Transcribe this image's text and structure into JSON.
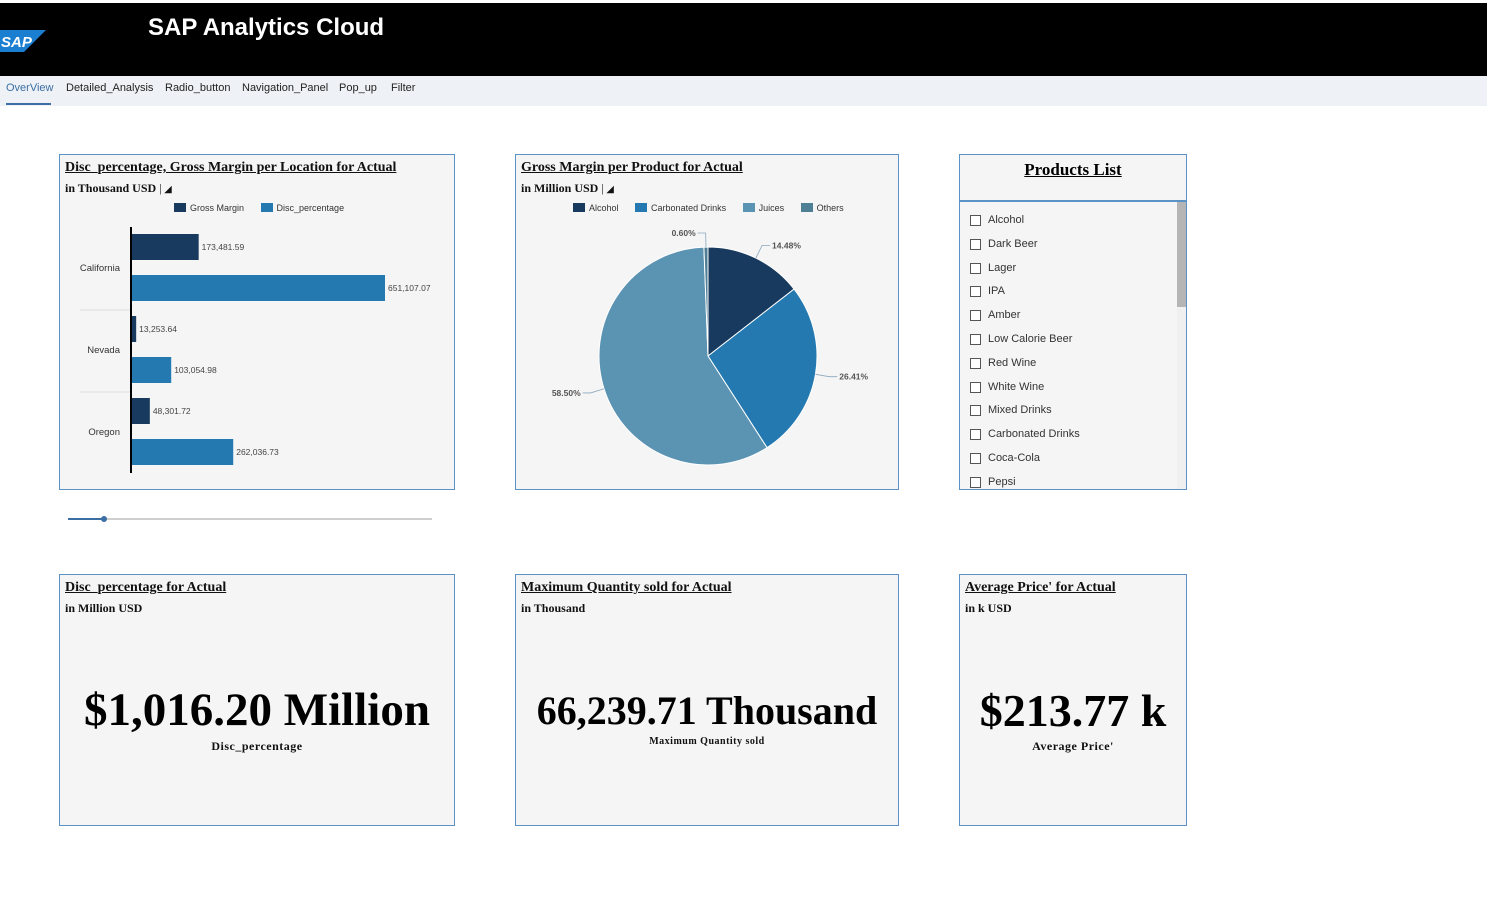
{
  "app": {
    "title": "SAP Analytics Cloud",
    "logo_text": "SAP"
  },
  "tabs": [
    {
      "label": "OverView",
      "active": true
    },
    {
      "label": "Detailed_Analysis"
    },
    {
      "label": "Radio_button"
    },
    {
      "label": "Navigation_Panel"
    },
    {
      "label": "Pop_up"
    },
    {
      "label": "Filter"
    }
  ],
  "colors": {
    "dark": "#173a5e",
    "mid": "#2479b0",
    "light": "#5b93b2",
    "gray": "#4f7f95",
    "accent": "#3b6ea5"
  },
  "bar_card": {
    "title": "Disc_percentage, Gross Margin per Location for Actual",
    "subtitle": "in Thousand USD",
    "legend": [
      "Gross Margin",
      "Disc_percentage"
    ],
    "chart_data": {
      "type": "bar",
      "orientation": "horizontal",
      "categories": [
        "California",
        "Nevada",
        "Oregon"
      ],
      "series": [
        {
          "name": "Gross Margin",
          "values": [
            173481.59,
            13253.64,
            48301.72
          ],
          "labels": [
            "173,481.59",
            "13,253.64",
            "48,301.72"
          ]
        },
        {
          "name": "Disc_percentage",
          "values": [
            651107.07,
            103054.98,
            262036.73
          ],
          "labels": [
            "651,107.07",
            "103,054.98",
            "262,036.73"
          ]
        }
      ]
    }
  },
  "pie_card": {
    "title": "Gross Margin per Product for Actual",
    "subtitle": "in Million USD",
    "legend": [
      "Alcohol",
      "Carbonated Drinks",
      "Juices",
      "Others"
    ],
    "chart_data": {
      "type": "pie",
      "categories": [
        "Alcohol",
        "Carbonated Drinks",
        "Juices",
        "Others"
      ],
      "values": [
        14.48,
        26.41,
        58.5,
        0.6
      ],
      "labels": [
        "14.48%",
        "26.41%",
        "58.50%",
        "0.60%"
      ]
    }
  },
  "products": {
    "title": "Products List",
    "items": [
      "Alcohol",
      "Dark Beer",
      "Lager",
      "IPA",
      "Amber",
      "Low Calorie Beer",
      "Red Wine",
      "White Wine",
      "Mixed Drinks",
      "Carbonated Drinks",
      "Coca-Cola",
      "Pepsi"
    ]
  },
  "kpis": [
    {
      "title": "Disc_percentage for Actual",
      "subtitle": "in Million USD",
      "value": "$1,016.20 Million",
      "label": "Disc_percentage"
    },
    {
      "title": "Maximum Quantity sold for Actual",
      "subtitle": "in Thousand",
      "value": "66,239.71 Thousand",
      "label": "Maximum Quantity sold"
    },
    {
      "title": "Average Price' for Actual",
      "subtitle": "in k USD",
      "value": "$213.77 k",
      "label": "Average Price'"
    }
  ]
}
